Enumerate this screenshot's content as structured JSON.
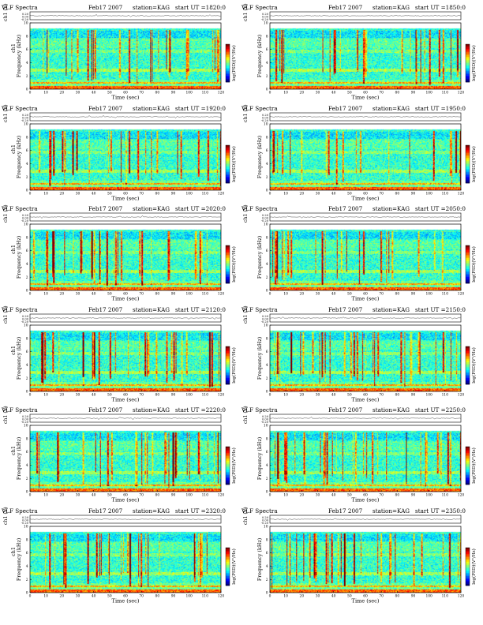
{
  "sheet": {
    "top_left": {
      "program": "VLF Spectra"
    }
  },
  "chart_data": [
    {
      "type": "heatmap",
      "header": {
        "program": "VLF Spectra",
        "date": "Feb17 2007",
        "station": "station=KAG",
        "start": "start UT =1820:0"
      },
      "upper_ylabel": "ch1 (V)",
      "upper_ticks": [
        "0.20",
        "0.00",
        "-0.20"
      ],
      "xlabel": "Time (sec)",
      "ylabel": "Frequency (kHz)",
      "ylabel_prefix": "ch1",
      "colorbar_label": "log(PSD)(V²/Hz)",
      "colorbar_position": "right",
      "xlim": [
        0,
        120
      ],
      "ylim": [
        0,
        10
      ],
      "x_ticks": [
        0,
        10,
        20,
        30,
        40,
        50,
        60,
        70,
        80,
        90,
        100,
        110,
        120
      ],
      "y_ticks": [
        0,
        2,
        4,
        6,
        8,
        10
      ],
      "seed": 11
    },
    {
      "type": "heatmap",
      "header": {
        "program": "VLF Spectra",
        "date": "Feb17 2007",
        "station": "station=KAG",
        "start": "start UT =1850:0"
      },
      "upper_ylabel": "ch1 (V)",
      "upper_ticks": [
        "0.20",
        "0.00",
        "-0.20"
      ],
      "xlabel": "Time (sec)",
      "ylabel": "Frequency (kHz)",
      "ylabel_prefix": "",
      "colorbar_label": "log(PSD)(V²/Hz)",
      "colorbar_position": "right",
      "xlim": [
        0,
        120
      ],
      "ylim": [
        0,
        10
      ],
      "x_ticks": [
        0,
        10,
        20,
        30,
        40,
        50,
        60,
        70,
        80,
        90,
        100,
        110,
        120
      ],
      "y_ticks": [
        0,
        2,
        4,
        6,
        8,
        10
      ],
      "seed": 23
    },
    {
      "type": "heatmap",
      "header": {
        "program": "VLF Spectra",
        "date": "Feb17 2007",
        "station": "station=KAG",
        "start": "start UT =1920:0"
      },
      "upper_ylabel": "ch1 (V)",
      "upper_ticks": [
        "0.20",
        "0.00",
        "-0.20"
      ],
      "xlabel": "Time (sec)",
      "ylabel": "Frequency (kHz)",
      "ylabel_prefix": "ch1",
      "colorbar_label": "log(PSD)(V²/Hz)",
      "colorbar_position": "right",
      "xlim": [
        0,
        120
      ],
      "ylim": [
        0,
        10
      ],
      "x_ticks": [
        0,
        10,
        20,
        30,
        40,
        50,
        60,
        70,
        80,
        90,
        100,
        110,
        120
      ],
      "y_ticks": [
        0,
        2,
        4,
        6,
        8,
        10
      ],
      "seed": 37
    },
    {
      "type": "heatmap",
      "header": {
        "program": "VLF Spectra",
        "date": "Feb17 2007",
        "station": "station=KAG",
        "start": "start UT =1950:0"
      },
      "upper_ylabel": "ch1 (V)",
      "upper_ticks": [
        "0.20",
        "0.00",
        "-0.20"
      ],
      "xlabel": "Time (sec)",
      "ylabel": "Frequency (kHz)",
      "ylabel_prefix": "",
      "colorbar_label": "log(PSD)(V²/Hz)",
      "colorbar_position": "right",
      "xlim": [
        0,
        120
      ],
      "ylim": [
        0,
        10
      ],
      "x_ticks": [
        0,
        10,
        20,
        30,
        40,
        50,
        60,
        70,
        80,
        90,
        100,
        110,
        120
      ],
      "y_ticks": [
        0,
        2,
        4,
        6,
        8,
        10
      ],
      "seed": 41
    },
    {
      "type": "heatmap",
      "header": {
        "program": "VLF Spectra",
        "date": "Feb17 2007",
        "station": "station=KAG",
        "start": "start UT =2020:0"
      },
      "upper_ylabel": "ch1 (V)",
      "upper_ticks": [
        "0.20",
        "0.00",
        "-0.20"
      ],
      "xlabel": "Time (sec)",
      "ylabel": "Frequency (kHz)",
      "ylabel_prefix": "ch1",
      "colorbar_label": "log(PSD)(V²/Hz)",
      "colorbar_position": "right",
      "xlim": [
        0,
        120
      ],
      "ylim": [
        0,
        10
      ],
      "x_ticks": [
        0,
        10,
        20,
        30,
        40,
        50,
        60,
        70,
        80,
        90,
        100,
        110,
        120
      ],
      "y_ticks": [
        0,
        2,
        4,
        6,
        8,
        10
      ],
      "seed": 53
    },
    {
      "type": "heatmap",
      "header": {
        "program": "VLF Spectra",
        "date": "Feb17 2007",
        "station": "station=KAG",
        "start": "start UT =2050:0"
      },
      "upper_ylabel": "ch1 (V)",
      "upper_ticks": [
        "0.20",
        "0.00",
        "-0.20"
      ],
      "xlabel": "Time (sec)",
      "ylabel": "Frequency (kHz)",
      "ylabel_prefix": "",
      "colorbar_label": "log(PSD)(V²/Hz)",
      "colorbar_position": "right",
      "xlim": [
        0,
        120
      ],
      "ylim": [
        0,
        10
      ],
      "x_ticks": [
        0,
        10,
        20,
        30,
        40,
        50,
        60,
        70,
        80,
        90,
        100,
        110,
        120
      ],
      "y_ticks": [
        0,
        2,
        4,
        6,
        8,
        10
      ],
      "seed": 67
    },
    {
      "type": "heatmap",
      "header": {
        "program": "VLF Spectra",
        "date": "Feb17 2007",
        "station": "station=KAG",
        "start": "start UT =2120:0"
      },
      "upper_ylabel": "ch1 (V)",
      "upper_ticks": [
        "0.20",
        "0.00",
        "-0.20"
      ],
      "xlabel": "Time (sec)",
      "ylabel": "Frequency (kHz)",
      "ylabel_prefix": "ch1",
      "colorbar_label": "log(PSD)(V²/Hz)",
      "colorbar_position": "right",
      "xlim": [
        0,
        120
      ],
      "ylim": [
        0,
        10
      ],
      "x_ticks": [
        0,
        10,
        20,
        30,
        40,
        50,
        60,
        70,
        80,
        90,
        100,
        110,
        120
      ],
      "y_ticks": [
        0,
        2,
        4,
        6,
        8,
        10
      ],
      "seed": 71
    },
    {
      "type": "heatmap",
      "header": {
        "program": "VLF Spectra",
        "date": "Feb17 2007",
        "station": "station=KAG",
        "start": "start UT =2150:0"
      },
      "upper_ylabel": "ch1 (V)",
      "upper_ticks": [
        "0.20",
        "0.00",
        "-0.20"
      ],
      "xlabel": "Time (sec)",
      "ylabel": "Frequency (kHz)",
      "ylabel_prefix": "",
      "colorbar_label": "log(PSD)(V²/Hz)",
      "colorbar_position": "right",
      "xlim": [
        0,
        120
      ],
      "ylim": [
        0,
        10
      ],
      "x_ticks": [
        0,
        10,
        20,
        30,
        40,
        50,
        60,
        70,
        80,
        90,
        100,
        110,
        120
      ],
      "y_ticks": [
        0,
        2,
        4,
        6,
        8,
        10
      ],
      "seed": 83
    },
    {
      "type": "heatmap",
      "header": {
        "program": "VLF Spectra",
        "date": "Feb17 2007",
        "station": "station=KAG",
        "start": "start UT =2220:0"
      },
      "upper_ylabel": "ch1 (V)",
      "upper_ticks": [
        "0.20",
        "0.00",
        "-0.20"
      ],
      "xlabel": "Time (sec)",
      "ylabel": "Frequency (kHz)",
      "ylabel_prefix": "ch1",
      "colorbar_label": "log(PSD)(V²/Hz)",
      "colorbar_position": "right",
      "xlim": [
        0,
        120
      ],
      "ylim": [
        0,
        10
      ],
      "x_ticks": [
        0,
        10,
        20,
        30,
        40,
        50,
        60,
        70,
        80,
        90,
        100,
        110,
        120
      ],
      "y_ticks": [
        0,
        2,
        4,
        6,
        8,
        10
      ],
      "seed": 97
    },
    {
      "type": "heatmap",
      "header": {
        "program": "VLF Spectra",
        "date": "Feb17 2007",
        "station": "station=KAG",
        "start": "start UT =2250:0"
      },
      "upper_ylabel": "ch1 (V)",
      "upper_ticks": [
        "0.20",
        "0.00",
        "-0.20"
      ],
      "xlabel": "Time (sec)",
      "ylabel": "Frequency (kHz)",
      "ylabel_prefix": "",
      "colorbar_label": "log(PSD)(V²/Hz)",
      "colorbar_position": "right",
      "xlim": [
        0,
        120
      ],
      "ylim": [
        0,
        10
      ],
      "x_ticks": [
        0,
        10,
        20,
        30,
        40,
        50,
        60,
        70,
        80,
        90,
        100,
        110,
        120
      ],
      "y_ticks": [
        0,
        2,
        4,
        6,
        8,
        10
      ],
      "seed": 101
    },
    {
      "type": "heatmap",
      "header": {
        "program": "VLF Spectra",
        "date": "Feb17 2007",
        "station": "station=KAG",
        "start": "start UT =2320:0"
      },
      "upper_ylabel": "ch1 (V)",
      "upper_ticks": [
        "0.20",
        "0.00",
        "-0.20"
      ],
      "xlabel": "Time (sec)",
      "ylabel": "Frequency (kHz)",
      "ylabel_prefix": "ch1",
      "colorbar_label": "log(PSD)(V²/Hz)",
      "colorbar_position": "right",
      "xlim": [
        0,
        120
      ],
      "ylim": [
        0,
        10
      ],
      "x_ticks": [
        0,
        10,
        20,
        30,
        40,
        50,
        60,
        70,
        80,
        90,
        100,
        110,
        120
      ],
      "y_ticks": [
        0,
        2,
        4,
        6,
        8,
        10
      ],
      "seed": 113
    },
    {
      "type": "heatmap",
      "header": {
        "program": "VLF Spectra",
        "date": "Feb17 2007",
        "station": "station=KAG",
        "start": "start UT =2350:0"
      },
      "upper_ylabel": "ch1 (V)",
      "upper_ticks": [
        "0.20",
        "0.00",
        "-0.20"
      ],
      "xlabel": "Time (sec)",
      "ylabel": "Frequency (kHz)",
      "ylabel_prefix": "",
      "colorbar_label": "log(PSD)(V²/Hz)",
      "colorbar_position": "right",
      "xlim": [
        0,
        120
      ],
      "ylim": [
        0,
        10
      ],
      "x_ticks": [
        0,
        10,
        20,
        30,
        40,
        50,
        60,
        70,
        80,
        90,
        100,
        110,
        120
      ],
      "y_ticks": [
        0,
        2,
        4,
        6,
        8,
        10
      ],
      "seed": 127
    }
  ],
  "palette": {
    "jet": [
      "#00007f",
      "#0000ff",
      "#007fff",
      "#00ffff",
      "#7fff7f",
      "#ffff00",
      "#ff7f00",
      "#ff0000",
      "#7f0000"
    ],
    "frame": "#000000",
    "trace": "#222222"
  }
}
